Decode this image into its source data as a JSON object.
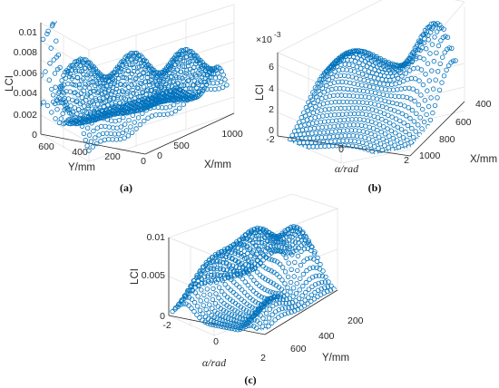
{
  "chart_data": [
    {
      "type": "scatter",
      "panel": "(a)",
      "caption": "(a)",
      "xlabel": "X/mm",
      "ylabel": "Y/mm",
      "zlabel": "LCI",
      "x_ticks": [
        "0",
        "500",
        "1000"
      ],
      "y_ticks": [
        "600",
        "400",
        "200",
        "0"
      ],
      "z_ticks": [
        "0",
        "0.002",
        "0.004",
        "0.006",
        "0.008",
        "0.01"
      ],
      "xlim": [
        0,
        1000
      ],
      "ylim": [
        0,
        650
      ],
      "zlim": [
        0,
        0.011
      ],
      "grid": true,
      "marker": "open circle",
      "color": "#0072BD",
      "surface_profile": [
        {
          "X": 0,
          "Y": 550,
          "LCI": 0.0115
        },
        {
          "X": 0,
          "Y": 480,
          "LCI": 0.008
        },
        {
          "X": 0,
          "Y": 400,
          "LCI": 0.002
        },
        {
          "X": 100,
          "Y": 300,
          "LCI": 0.0065
        },
        {
          "X": 250,
          "Y": 250,
          "LCI": 0.006
        },
        {
          "X": 500,
          "Y": 150,
          "LCI": 0.0058
        },
        {
          "X": 800,
          "Y": 100,
          "LCI": 0.005
        },
        {
          "X": 1000,
          "Y": 50,
          "LCI": 0.0035
        }
      ]
    },
    {
      "type": "scatter",
      "panel": "(b)",
      "caption": "(b)",
      "xlabel": "X/mm",
      "ylabel": "α/rad",
      "zlabel": "LCI",
      "scale_label": "×10",
      "scale_exp": "-3",
      "x_ticks": [
        "400",
        "600",
        "800",
        "1000"
      ],
      "y_ticks": [
        "-2",
        "0",
        "2"
      ],
      "z_ticks": [
        "0",
        "2",
        "4",
        "6"
      ],
      "xlim": [
        350,
        1050
      ],
      "ylim": [
        -2.3,
        2.3
      ],
      "zlim": [
        0,
        7.5
      ],
      "grid": true,
      "marker": "open circle",
      "color": "#0072BD",
      "surface_profile": [
        {
          "alpha": -2,
          "X": 400,
          "LCI": 3.5
        },
        {
          "alpha": -1,
          "X": 500,
          "LCI": 2.0
        },
        {
          "alpha": 0,
          "X": 500,
          "LCI": 4.5
        },
        {
          "alpha": 1,
          "X": 450,
          "LCI": 6.5
        },
        {
          "alpha": 1.7,
          "X": 450,
          "LCI": 7.2
        },
        {
          "alpha": 2,
          "X": 800,
          "LCI": 1.0
        }
      ]
    },
    {
      "type": "scatter",
      "panel": "(c)",
      "caption": "(c)",
      "xlabel": "Y/mm",
      "ylabel": "α/rad",
      "zlabel": "LCI",
      "x_ticks": [
        "200",
        "400",
        "600"
      ],
      "y_ticks": [
        "-2",
        "0",
        "2"
      ],
      "z_ticks": [
        "0",
        "0.005",
        "0.01"
      ],
      "xlim": [
        150,
        700
      ],
      "ylim": [
        -2.3,
        2.3
      ],
      "zlim": [
        0,
        0.01
      ],
      "grid": true,
      "marker": "open circle",
      "color": "#0072BD",
      "surface_profile": [
        {
          "alpha": -1.5,
          "Y": 500,
          "LCI": 0.0055
        },
        {
          "alpha": -0.5,
          "Y": 300,
          "LCI": 0.0085
        },
        {
          "alpha": 0.8,
          "Y": 250,
          "LCI": 0.0085
        },
        {
          "alpha": 1.5,
          "Y": 550,
          "LCI": 0.0025
        }
      ]
    }
  ]
}
